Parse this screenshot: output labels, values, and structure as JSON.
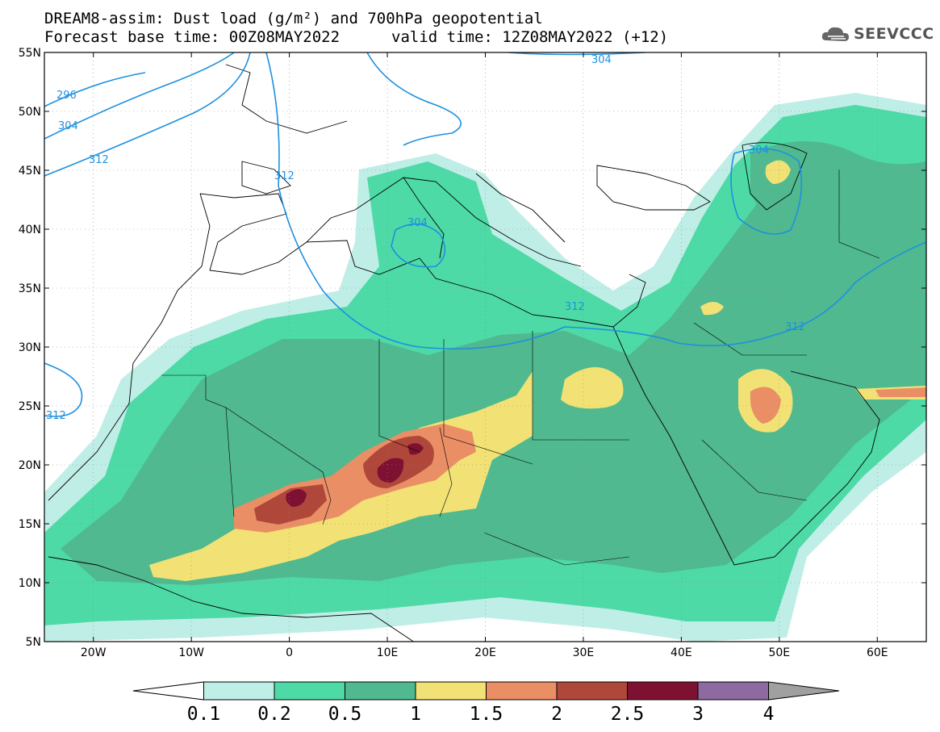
{
  "header": {
    "line1": "DREAM8-assim: Dust load (g/m²) and 700hPa geopotential",
    "line2": "Forecast base time: 00Z08MAY2022",
    "valid": "valid time: 12Z08MAY2022 (+12)",
    "logo": "SEEVCCC"
  },
  "axes": {
    "lat_labels": [
      "55N",
      "50N",
      "45N",
      "40N",
      "35N",
      "30N",
      "25N",
      "20N",
      "15N",
      "10N",
      "5N"
    ],
    "lon_labels": [
      "20W",
      "10W",
      "0",
      "10E",
      "20E",
      "30E",
      "40E",
      "50E",
      "60E"
    ]
  },
  "contour_labels": [
    "296",
    "304",
    "312",
    "312",
    "304",
    "304",
    "312",
    "312",
    "312"
  ],
  "colorbar": {
    "colors": [
      "#ffffff",
      "#bfeee6",
      "#4ddaa6",
      "#50b98f",
      "#f2e275",
      "#ea8e66",
      "#b0473b",
      "#7e1132",
      "#8d6aa0",
      "#a0a0a0"
    ],
    "labels": [
      "0.1",
      "0.2",
      "0.5",
      "1",
      "1.5",
      "2",
      "2.5",
      "3",
      "4"
    ]
  },
  "legend_colors": {
    "land_outline": "#000000",
    "geopotential": "#1e90e0"
  }
}
